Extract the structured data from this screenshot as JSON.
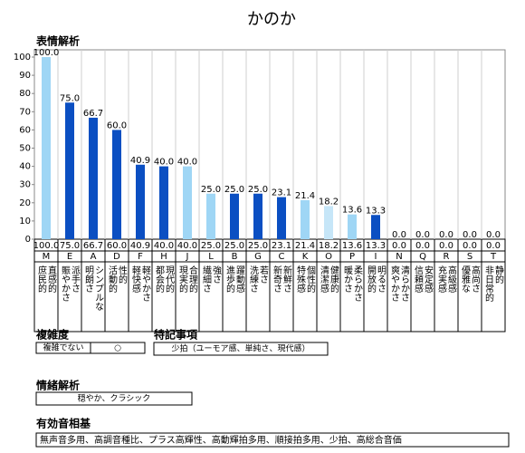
{
  "chart_data": {
    "type": "bar",
    "title": "かのか",
    "subtitle": "表情解析",
    "categories": [
      "M",
      "E",
      "A",
      "D",
      "F",
      "H",
      "J",
      "L",
      "B",
      "G",
      "C",
      "K",
      "O",
      "P",
      "I",
      "N",
      "Q",
      "R",
      "S",
      "T"
    ],
    "values": [
      100,
      75,
      66.7,
      60,
      40.9,
      40,
      40,
      25,
      25,
      25,
      23.1,
      21.4,
      18.2,
      13.6,
      13.3,
      0,
      0,
      0,
      0,
      0
    ],
    "value_labels": [
      "100.0",
      "75.0",
      "66.7",
      "60.0",
      "40.9",
      "40.0",
      "40.0",
      "25.0",
      "25.0",
      "25.0",
      "23.1",
      "21.4",
      "18.2",
      "13.6",
      "13.3",
      "0.0",
      "0.0",
      "0.0",
      "0.0",
      "0.0"
    ],
    "colors": [
      "#9fd6f5",
      "#0b4fc2",
      "#0b4fc2",
      "#0b4fc2",
      "#0b4fc2",
      "#0b4fc2",
      "#9fd6f5",
      "#9fd6f5",
      "#0b4fc2",
      "#0b4fc2",
      "#0b4fc2",
      "#9fd6f5",
      "#c6e6f8",
      "#9fd6f5",
      "#0b4fc2",
      "#0b4fc2",
      "#0b4fc2",
      "#0b4fc2",
      "#0b4fc2",
      "#0b4fc2"
    ],
    "descriptions": [
      [
        "直感的",
        "庶民的"
      ],
      [
        "派手さ",
        "賑やかさ"
      ],
      [
        "シンプルな",
        "明朗さ"
      ],
      [
        "性的",
        "活動的"
      ],
      [
        "軽やかさ",
        "軽快感"
      ],
      [
        "現代的",
        "都会的"
      ],
      [
        "合理的",
        "現実的"
      ],
      [
        "強さ",
        "繊細さ"
      ],
      [
        "躍動感",
        "進歩的"
      ],
      [
        "若さ",
        "洗練さ"
      ],
      [
        "新鮮さ",
        "新奇さ"
      ],
      [
        "個性的",
        "特殊感"
      ],
      [
        "健康的",
        "清潔感"
      ],
      [
        "柔らかさ",
        "暖かさ"
      ],
      [
        "明るさ",
        "開放的"
      ],
      [
        "清らかさ",
        "爽やかさ"
      ],
      [
        "安定感",
        "信頼感"
      ],
      [
        "高級感",
        "充実感"
      ],
      [
        "高尚さ",
        "優雅な"
      ],
      [
        "静的",
        "非日常的"
      ]
    ],
    "ylim": [
      0,
      100
    ],
    "yticks": [
      0,
      10,
      20,
      30,
      40,
      50,
      60,
      70,
      80,
      90,
      100
    ]
  },
  "complexity": {
    "title": "複雑度",
    "cells": [
      "複雑でない",
      "○"
    ]
  },
  "notes": {
    "title": "特記事項",
    "text": "少拍（ユーモア感、単純さ、現代感）"
  },
  "emotion": {
    "title": "情緒解析",
    "text": "穏やか、クラシック"
  },
  "phonetic": {
    "title": "有効音相基",
    "text": "無声音多用、高調音種比、プラス高輝性、高動輝拍多用、順接拍多用、少拍、高総合音価"
  }
}
